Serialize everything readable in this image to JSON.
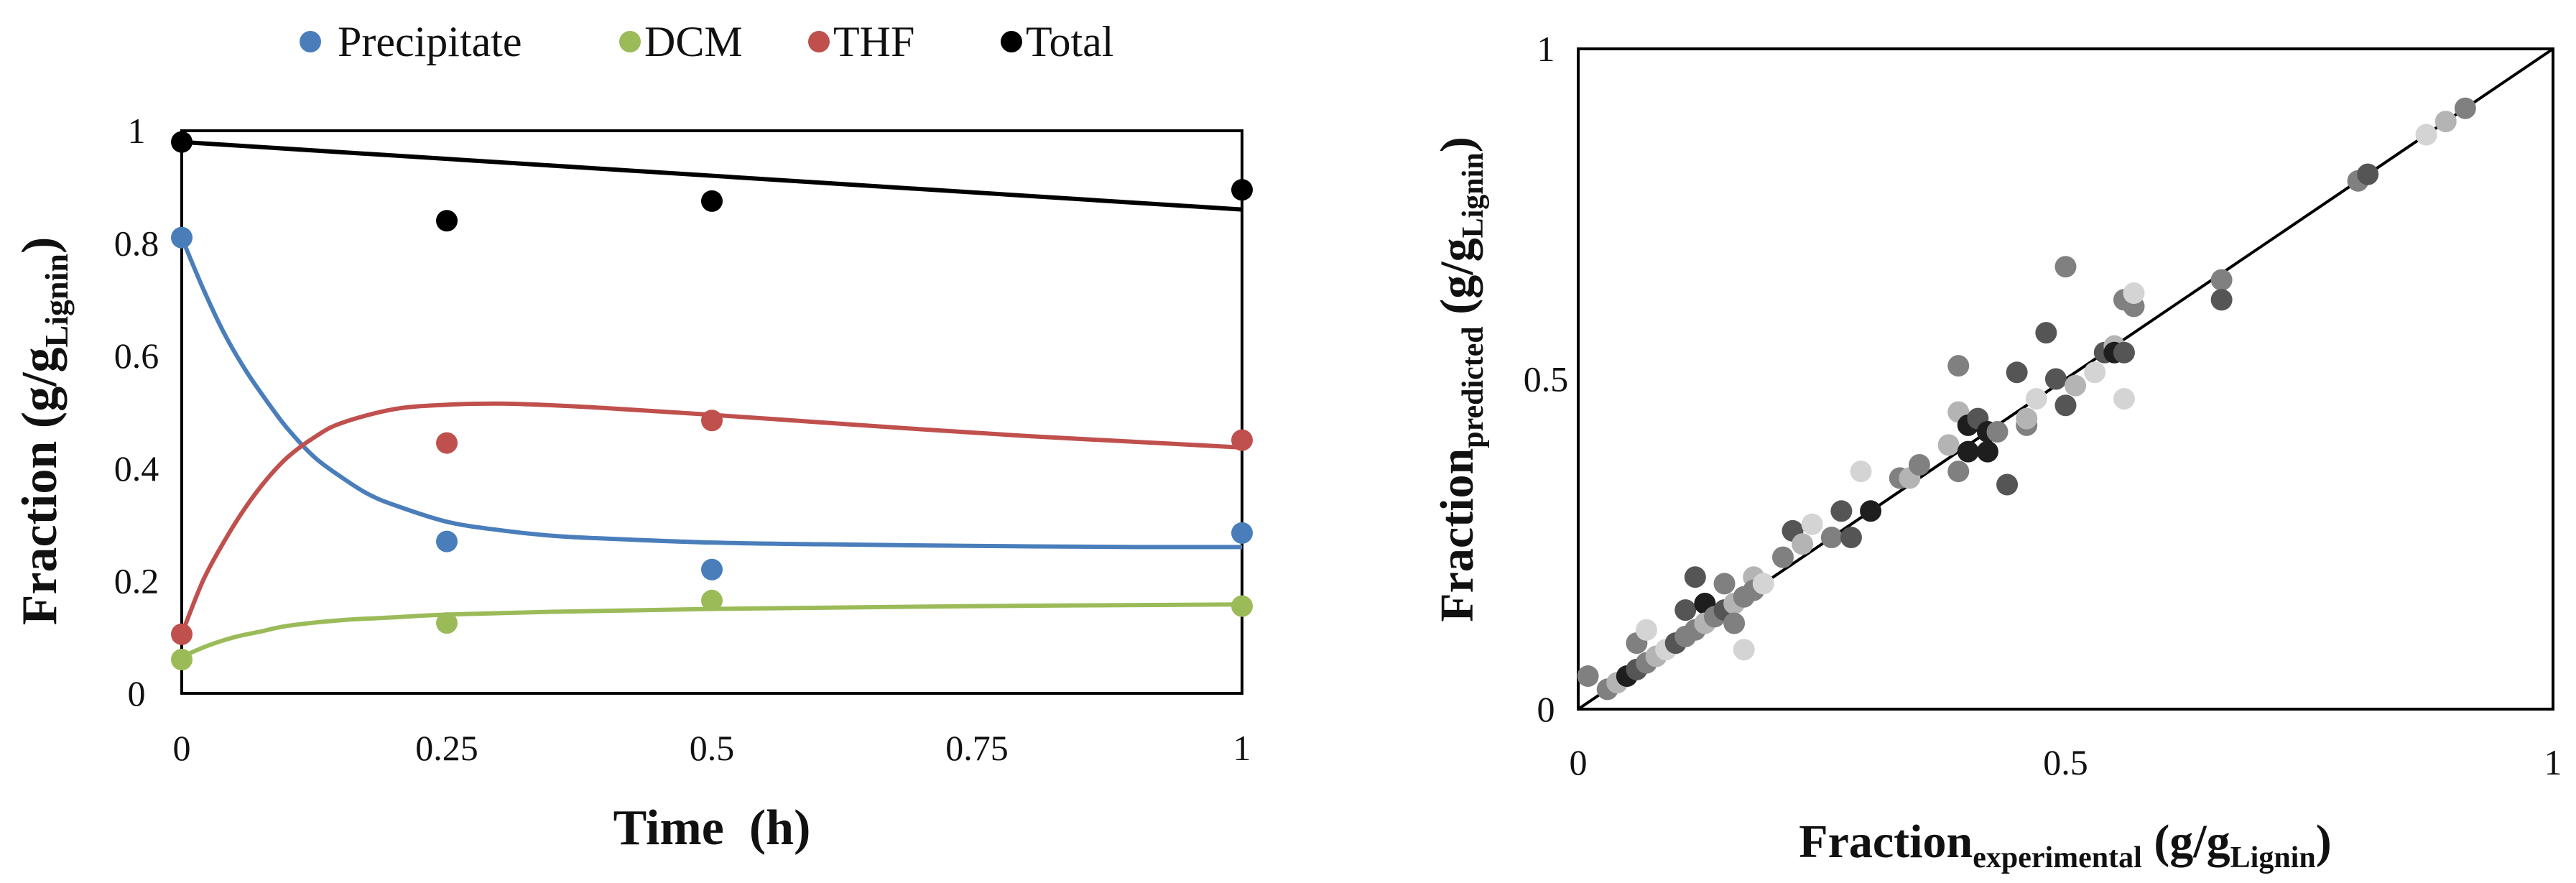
{
  "chart_data": [
    {
      "type": "scatter",
      "title": "",
      "xlabel": "Time  (h)",
      "ylabel": {
        "main": "Fraction (g/g",
        "sub": "Lignin",
        "close": ")"
      },
      "xlim": [
        0,
        1
      ],
      "ylim": [
        0,
        1
      ],
      "xticks": [
        0,
        0.25,
        0.5,
        0.75,
        1
      ],
      "xtick_labels": [
        "0",
        "0.25",
        "0.5",
        "0.75",
        "1"
      ],
      "yticks": [
        0,
        0.2,
        0.4,
        0.6,
        0.8,
        1
      ],
      "ytick_labels": [
        "0",
        "0.2",
        "0.4",
        "0.6",
        "0.8",
        "1"
      ],
      "legend_position": "top",
      "series": [
        {
          "name": "Precipitate",
          "color": "#4a7ebb",
          "points": [
            [
              0,
              0.81
            ],
            [
              0.25,
              0.27
            ],
            [
              0.5,
              0.22
            ],
            [
              1,
              0.285
            ]
          ],
          "fit": [
            [
              0,
              0.81
            ],
            [
              0.02,
              0.72
            ],
            [
              0.04,
              0.64
            ],
            [
              0.06,
              0.575
            ],
            [
              0.08,
              0.52
            ],
            [
              0.1,
              0.47
            ],
            [
              0.125,
              0.42
            ],
            [
              0.15,
              0.385
            ],
            [
              0.175,
              0.355
            ],
            [
              0.2,
              0.335
            ],
            [
              0.25,
              0.305
            ],
            [
              0.3,
              0.29
            ],
            [
              0.35,
              0.28
            ],
            [
              0.4,
              0.275
            ],
            [
              0.5,
              0.268
            ],
            [
              0.6,
              0.265
            ],
            [
              0.75,
              0.262
            ],
            [
              0.9,
              0.26
            ],
            [
              1,
              0.26
            ]
          ]
        },
        {
          "name": "DCM",
          "color": "#9bbb59",
          "points": [
            [
              0,
              0.06
            ],
            [
              0.25,
              0.125
            ],
            [
              0.5,
              0.165
            ],
            [
              1,
              0.155
            ]
          ],
          "fit": [
            [
              0,
              0.065
            ],
            [
              0.025,
              0.085
            ],
            [
              0.05,
              0.1
            ],
            [
              0.075,
              0.11
            ],
            [
              0.1,
              0.12
            ],
            [
              0.15,
              0.13
            ],
            [
              0.2,
              0.135
            ],
            [
              0.25,
              0.14
            ],
            [
              0.35,
              0.145
            ],
            [
              0.5,
              0.15
            ],
            [
              0.75,
              0.155
            ],
            [
              1,
              0.158
            ]
          ]
        },
        {
          "name": "THF",
          "color": "#c0504d",
          "points": [
            [
              0,
              0.105
            ],
            [
              0.25,
              0.445
            ],
            [
              0.5,
              0.485
            ],
            [
              1,
              0.45
            ]
          ],
          "fit": [
            [
              0,
              0.105
            ],
            [
              0.02,
              0.2
            ],
            [
              0.04,
              0.27
            ],
            [
              0.06,
              0.33
            ],
            [
              0.08,
              0.38
            ],
            [
              0.1,
              0.42
            ],
            [
              0.125,
              0.455
            ],
            [
              0.15,
              0.48
            ],
            [
              0.2,
              0.505
            ],
            [
              0.25,
              0.513
            ],
            [
              0.3,
              0.515
            ],
            [
              0.35,
              0.512
            ],
            [
              0.4,
              0.507
            ],
            [
              0.5,
              0.495
            ],
            [
              0.6,
              0.482
            ],
            [
              0.7,
              0.469
            ],
            [
              0.8,
              0.457
            ],
            [
              0.9,
              0.447
            ],
            [
              1,
              0.437
            ]
          ]
        },
        {
          "name": "Total",
          "color": "#000000",
          "points": [
            [
              0,
              0.98
            ],
            [
              0.25,
              0.84
            ],
            [
              0.5,
              0.875
            ],
            [
              1,
              0.895
            ]
          ],
          "fit": [
            [
              0,
              0.98
            ],
            [
              1,
              0.86
            ]
          ]
        }
      ]
    },
    {
      "type": "scatter",
      "title": "",
      "xlabel": {
        "main": "Fraction",
        "sub": "experimental",
        "suffix": " (g/g",
        "sub2": "Lignin",
        "close": ")"
      },
      "ylabel": {
        "main": "Fraction",
        "sub": "predicted",
        "suffix": " (g/g",
        "sub2": "Lignin",
        "close": ")"
      },
      "xlim": [
        0,
        1
      ],
      "ylim": [
        0,
        1
      ],
      "xticks": [
        0,
        0.5,
        1
      ],
      "xtick_labels": [
        "0",
        "0.5",
        "1"
      ],
      "yticks": [
        0,
        0.5,
        1
      ],
      "ytick_labels": [
        "0",
        "0.5",
        "1"
      ],
      "parity_line": [
        [
          0,
          0
        ],
        [
          1,
          1
        ]
      ],
      "point_colors": {
        "black": "#1e1e1e",
        "dark": "#555555",
        "mid": "#808080",
        "light": "#b4b4b4",
        "pale": "#d4d4d4"
      },
      "points": [
        {
          "x": 0.01,
          "y": 0.05,
          "tone": "mid"
        },
        {
          "x": 0.03,
          "y": 0.03,
          "tone": "mid"
        },
        {
          "x": 0.04,
          "y": 0.04,
          "tone": "light"
        },
        {
          "x": 0.05,
          "y": 0.05,
          "tone": "black"
        },
        {
          "x": 0.06,
          "y": 0.06,
          "tone": "dark"
        },
        {
          "x": 0.06,
          "y": 0.1,
          "tone": "mid"
        },
        {
          "x": 0.07,
          "y": 0.07,
          "tone": "mid"
        },
        {
          "x": 0.07,
          "y": 0.12,
          "tone": "pale"
        },
        {
          "x": 0.08,
          "y": 0.08,
          "tone": "light"
        },
        {
          "x": 0.09,
          "y": 0.09,
          "tone": "pale"
        },
        {
          "x": 0.1,
          "y": 0.1,
          "tone": "dark"
        },
        {
          "x": 0.11,
          "y": 0.11,
          "tone": "mid"
        },
        {
          "x": 0.11,
          "y": 0.15,
          "tone": "dark"
        },
        {
          "x": 0.12,
          "y": 0.12,
          "tone": "mid"
        },
        {
          "x": 0.12,
          "y": 0.2,
          "tone": "dark"
        },
        {
          "x": 0.13,
          "y": 0.16,
          "tone": "black"
        },
        {
          "x": 0.13,
          "y": 0.13,
          "tone": "light"
        },
        {
          "x": 0.14,
          "y": 0.14,
          "tone": "mid"
        },
        {
          "x": 0.15,
          "y": 0.15,
          "tone": "dark"
        },
        {
          "x": 0.15,
          "y": 0.19,
          "tone": "mid"
        },
        {
          "x": 0.16,
          "y": 0.16,
          "tone": "light"
        },
        {
          "x": 0.16,
          "y": 0.13,
          "tone": "mid"
        },
        {
          "x": 0.17,
          "y": 0.17,
          "tone": "mid"
        },
        {
          "x": 0.17,
          "y": 0.09,
          "tone": "pale"
        },
        {
          "x": 0.18,
          "y": 0.2,
          "tone": "light"
        },
        {
          "x": 0.18,
          "y": 0.18,
          "tone": "mid"
        },
        {
          "x": 0.19,
          "y": 0.19,
          "tone": "pale"
        },
        {
          "x": 0.21,
          "y": 0.23,
          "tone": "mid"
        },
        {
          "x": 0.22,
          "y": 0.27,
          "tone": "dark"
        },
        {
          "x": 0.23,
          "y": 0.25,
          "tone": "light"
        },
        {
          "x": 0.24,
          "y": 0.28,
          "tone": "pale"
        },
        {
          "x": 0.26,
          "y": 0.26,
          "tone": "mid"
        },
        {
          "x": 0.27,
          "y": 0.3,
          "tone": "dark"
        },
        {
          "x": 0.28,
          "y": 0.26,
          "tone": "dark"
        },
        {
          "x": 0.29,
          "y": 0.36,
          "tone": "pale"
        },
        {
          "x": 0.3,
          "y": 0.3,
          "tone": "black"
        },
        {
          "x": 0.33,
          "y": 0.35,
          "tone": "mid"
        },
        {
          "x": 0.34,
          "y": 0.35,
          "tone": "light"
        },
        {
          "x": 0.35,
          "y": 0.37,
          "tone": "mid"
        },
        {
          "x": 0.38,
          "y": 0.4,
          "tone": "light"
        },
        {
          "x": 0.39,
          "y": 0.52,
          "tone": "mid"
        },
        {
          "x": 0.39,
          "y": 0.45,
          "tone": "light"
        },
        {
          "x": 0.39,
          "y": 0.36,
          "tone": "mid"
        },
        {
          "x": 0.4,
          "y": 0.43,
          "tone": "black"
        },
        {
          "x": 0.4,
          "y": 0.39,
          "tone": "black"
        },
        {
          "x": 0.41,
          "y": 0.44,
          "tone": "dark"
        },
        {
          "x": 0.42,
          "y": 0.42,
          "tone": "black"
        },
        {
          "x": 0.42,
          "y": 0.39,
          "tone": "black"
        },
        {
          "x": 0.43,
          "y": 0.42,
          "tone": "mid"
        },
        {
          "x": 0.44,
          "y": 0.34,
          "tone": "dark"
        },
        {
          "x": 0.45,
          "y": 0.51,
          "tone": "dark"
        },
        {
          "x": 0.46,
          "y": 0.43,
          "tone": "mid"
        },
        {
          "x": 0.46,
          "y": 0.44,
          "tone": "light"
        },
        {
          "x": 0.47,
          "y": 0.47,
          "tone": "pale"
        },
        {
          "x": 0.48,
          "y": 0.57,
          "tone": "dark"
        },
        {
          "x": 0.49,
          "y": 0.5,
          "tone": "dark"
        },
        {
          "x": 0.5,
          "y": 0.46,
          "tone": "dark"
        },
        {
          "x": 0.5,
          "y": 0.67,
          "tone": "mid"
        },
        {
          "x": 0.51,
          "y": 0.49,
          "tone": "light"
        },
        {
          "x": 0.53,
          "y": 0.51,
          "tone": "pale"
        },
        {
          "x": 0.54,
          "y": 0.54,
          "tone": "dark"
        },
        {
          "x": 0.55,
          "y": 0.55,
          "tone": "light"
        },
        {
          "x": 0.55,
          "y": 0.54,
          "tone": "black"
        },
        {
          "x": 0.56,
          "y": 0.62,
          "tone": "mid"
        },
        {
          "x": 0.56,
          "y": 0.47,
          "tone": "pale"
        },
        {
          "x": 0.56,
          "y": 0.54,
          "tone": "dark"
        },
        {
          "x": 0.57,
          "y": 0.61,
          "tone": "mid"
        },
        {
          "x": 0.57,
          "y": 0.63,
          "tone": "pale"
        },
        {
          "x": 0.66,
          "y": 0.65,
          "tone": "mid"
        },
        {
          "x": 0.66,
          "y": 0.62,
          "tone": "dark"
        },
        {
          "x": 0.8,
          "y": 0.8,
          "tone": "mid"
        },
        {
          "x": 0.81,
          "y": 0.81,
          "tone": "dark"
        },
        {
          "x": 0.87,
          "y": 0.87,
          "tone": "pale"
        },
        {
          "x": 0.89,
          "y": 0.89,
          "tone": "light"
        },
        {
          "x": 0.91,
          "y": 0.91,
          "tone": "mid"
        }
      ]
    }
  ]
}
